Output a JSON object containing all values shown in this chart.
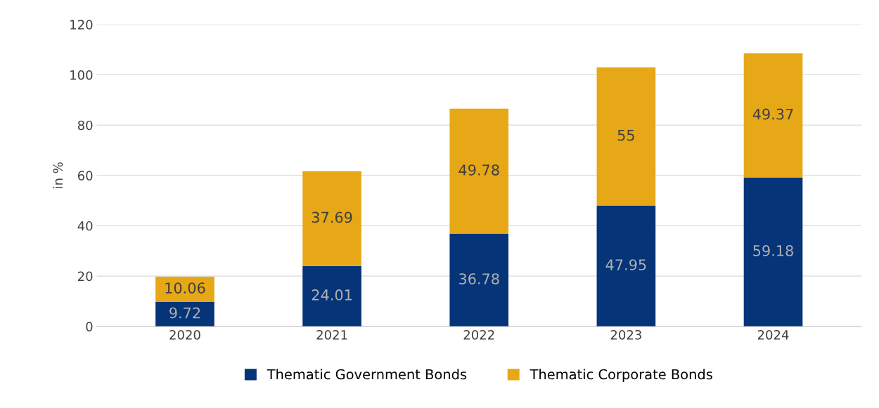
{
  "chart_data": {
    "type": "bar",
    "stacked": true,
    "ylabel": "in %",
    "categories": [
      "2020",
      "2021",
      "2022",
      "2023",
      "2024"
    ],
    "series": [
      {
        "name": "Thematic Government Bonds",
        "color": "#063478",
        "values": [
          9.72,
          24.01,
          36.78,
          47.95,
          59.18
        ]
      },
      {
        "name": "Thematic Corporate Bonds",
        "color": "#e6a817",
        "values": [
          10.06,
          37.69,
          49.78,
          55,
          49.37
        ]
      }
    ],
    "ylim": [
      0,
      120
    ],
    "yticks": [
      0,
      20,
      40,
      60,
      80,
      100,
      120
    ],
    "grid": "y",
    "legend": "bottom",
    "data_labels": true
  }
}
